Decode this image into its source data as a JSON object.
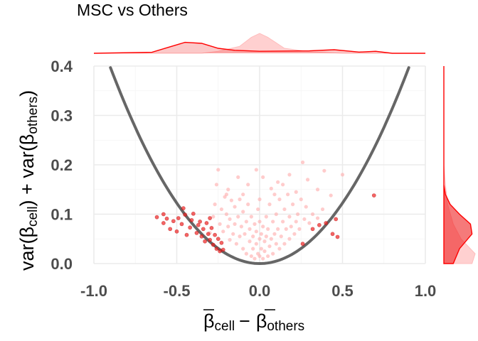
{
  "chart_data": {
    "type": "scatter",
    "title": "MSC vs Others",
    "xlabel": {
      "part1": "β",
      "part1_sub": "cell",
      "operator": "−",
      "part2": "β",
      "part2_sub": "others"
    },
    "ylabel": {
      "prefix": "var(β",
      "sub1": "cell",
      "middle": ") + var(β",
      "sub2": "others",
      "suffix": ")"
    },
    "xlim": [
      -1.0,
      1.0
    ],
    "ylim": [
      0.0,
      0.4
    ],
    "x_ticks": [
      "-1.0",
      "-0.5",
      "0.0",
      "0.5",
      "1.0"
    ],
    "y_ticks": [
      "0.0",
      "0.1",
      "0.2",
      "0.3",
      "0.4"
    ],
    "grid": true,
    "curve": {
      "type": "parabola",
      "coefficient": 0.49,
      "x_range": [
        -0.9,
        0.9
      ],
      "color": "#666666"
    },
    "colors": {
      "significant": "#ee2222",
      "non_significant": "#ffaaaa",
      "density_line": "#ff0000"
    },
    "series": [
      {
        "name": "",
        "role": "significant",
        "points": [
          [
            -0.62,
            0.094
          ],
          [
            -0.58,
            0.082
          ],
          [
            -0.56,
            0.091
          ],
          [
            -0.54,
            0.07
          ],
          [
            -0.52,
            0.086
          ],
          [
            -0.5,
            0.065
          ],
          [
            -0.49,
            0.092
          ],
          [
            -0.47,
            0.08
          ],
          [
            -0.45,
            0.099
          ],
          [
            -0.44,
            0.058
          ],
          [
            -0.42,
            0.073
          ],
          [
            -0.41,
            0.088
          ],
          [
            -0.4,
            0.101
          ],
          [
            -0.38,
            0.062
          ],
          [
            -0.37,
            0.078
          ],
          [
            -0.36,
            0.085
          ],
          [
            -0.35,
            0.055
          ],
          [
            -0.34,
            0.07
          ],
          [
            -0.33,
            0.045
          ],
          [
            -0.32,
            0.082
          ],
          [
            -0.31,
            0.06
          ],
          [
            -0.3,
            0.048
          ],
          [
            -0.29,
            0.072
          ],
          [
            -0.28,
            0.038
          ],
          [
            -0.27,
            0.058
          ],
          [
            -0.26,
            0.03
          ],
          [
            -0.25,
            0.05
          ],
          [
            -0.24,
            0.025
          ],
          [
            -0.23,
            0.042
          ],
          [
            -0.22,
            0.028
          ],
          [
            -0.58,
            0.1
          ],
          [
            -0.46,
            0.112
          ],
          [
            -0.3,
            0.092
          ],
          [
            0.26,
            0.04
          ],
          [
            0.32,
            0.07
          ],
          [
            0.36,
            0.078
          ],
          [
            0.4,
            0.082
          ],
          [
            0.44,
            0.06
          ],
          [
            0.46,
            0.09
          ],
          [
            0.47,
            0.054
          ],
          [
            0.69,
            0.138
          ]
        ]
      },
      {
        "name": "",
        "role": "non_significant",
        "points": [
          [
            -0.3,
            0.062
          ],
          [
            -0.28,
            0.095
          ],
          [
            -0.27,
            0.12
          ],
          [
            -0.26,
            0.16
          ],
          [
            -0.25,
            0.19
          ],
          [
            -0.24,
            0.08
          ],
          [
            -0.23,
            0.11
          ],
          [
            -0.22,
            0.065
          ],
          [
            -0.21,
            0.135
          ],
          [
            -0.2,
            0.1
          ],
          [
            -0.19,
            0.075
          ],
          [
            -0.18,
            0.048
          ],
          [
            -0.18,
            0.09
          ],
          [
            -0.17,
            0.128
          ],
          [
            -0.16,
            0.06
          ],
          [
            -0.15,
            0.115
          ],
          [
            -0.15,
            0.08
          ],
          [
            -0.14,
            0.04
          ],
          [
            -0.13,
            0.095
          ],
          [
            -0.12,
            0.055
          ],
          [
            -0.12,
            0.13
          ],
          [
            -0.11,
            0.075
          ],
          [
            -0.1,
            0.03
          ],
          [
            -0.1,
            0.105
          ],
          [
            -0.09,
            0.06
          ],
          [
            -0.08,
            0.085
          ],
          [
            -0.08,
            0.02
          ],
          [
            -0.07,
            0.12
          ],
          [
            -0.06,
            0.045
          ],
          [
            -0.06,
            0.07
          ],
          [
            -0.05,
            0.015
          ],
          [
            -0.05,
            0.095
          ],
          [
            -0.04,
            0.055
          ],
          [
            -0.04,
            0.03
          ],
          [
            -0.03,
            0.08
          ],
          [
            -0.03,
            0.01
          ],
          [
            -0.02,
            0.04
          ],
          [
            -0.02,
            0.065
          ],
          [
            -0.01,
            0.02
          ],
          [
            -0.01,
            0.11
          ],
          [
            0.0,
            0.05
          ],
          [
            0.0,
            0.015
          ],
          [
            0.0,
            0.085
          ],
          [
            0.01,
            0.03
          ],
          [
            0.01,
            0.06
          ],
          [
            0.02,
            0.01
          ],
          [
            0.02,
            0.075
          ],
          [
            0.03,
            0.045
          ],
          [
            0.03,
            0.025
          ],
          [
            0.04,
            0.095
          ],
          [
            0.04,
            0.055
          ],
          [
            0.05,
            0.015
          ],
          [
            0.05,
            0.07
          ],
          [
            0.06,
            0.035
          ],
          [
            0.06,
            0.12
          ],
          [
            0.07,
            0.05
          ],
          [
            0.08,
            0.085
          ],
          [
            0.08,
            0.02
          ],
          [
            0.09,
            0.06
          ],
          [
            0.1,
            0.04
          ],
          [
            0.1,
            0.1
          ],
          [
            0.11,
            0.07
          ],
          [
            0.12,
            0.03
          ],
          [
            0.12,
            0.13
          ],
          [
            0.13,
            0.055
          ],
          [
            0.14,
            0.085
          ],
          [
            0.15,
            0.04
          ],
          [
            0.15,
            0.11
          ],
          [
            0.16,
            0.07
          ],
          [
            0.17,
            0.14
          ],
          [
            0.18,
            0.05
          ],
          [
            0.18,
            0.095
          ],
          [
            0.19,
            0.075
          ],
          [
            0.2,
            0.12
          ],
          [
            0.21,
            0.06
          ],
          [
            0.22,
            0.085
          ],
          [
            0.23,
            0.1
          ],
          [
            0.24,
            0.07
          ],
          [
            0.25,
            0.13
          ],
          [
            0.27,
            0.09
          ],
          [
            0.28,
            0.115
          ],
          [
            0.3,
            0.082
          ],
          [
            0.32,
            0.1
          ],
          [
            0.35,
            0.092
          ],
          [
            0.38,
            0.11
          ],
          [
            -0.13,
            0.175
          ],
          [
            -0.07,
            0.16
          ],
          [
            0.02,
            0.175
          ],
          [
            0.07,
            0.152
          ],
          [
            0.11,
            0.165
          ],
          [
            0.26,
            0.205
          ],
          [
            0.29,
            0.17
          ],
          [
            0.39,
            0.188
          ],
          [
            0.43,
            0.138
          ],
          [
            0.5,
            0.18
          ],
          [
            -0.02,
            0.19
          ],
          [
            0.18,
            0.18
          ],
          [
            0.35,
            0.15
          ],
          [
            -0.19,
            0.15
          ],
          [
            0.14,
            0.16
          ],
          [
            -0.2,
            0.14
          ],
          [
            0.0,
            0.13
          ],
          [
            0.22,
            0.145
          ],
          [
            -0.1,
            0.14
          ],
          [
            0.09,
            0.14
          ]
        ]
      }
    ],
    "marginal_density": {
      "top": {
        "significant": [
          [
            -0.65,
            0.05
          ],
          [
            -0.55,
            0.3
          ],
          [
            -0.45,
            0.55
          ],
          [
            -0.35,
            0.5
          ],
          [
            -0.25,
            0.25
          ],
          [
            -0.15,
            0.15
          ],
          [
            0.0,
            0.1
          ],
          [
            0.3,
            0.12
          ],
          [
            0.45,
            0.18
          ],
          [
            0.6,
            0.06
          ],
          [
            0.7,
            0.1
          ],
          [
            0.8,
            0.0
          ]
        ],
        "non_significant": [
          [
            -0.35,
            0.0
          ],
          [
            -0.25,
            0.1
          ],
          [
            -0.12,
            0.35
          ],
          [
            -0.05,
            0.8
          ],
          [
            0.0,
            1.0
          ],
          [
            0.05,
            0.8
          ],
          [
            0.15,
            0.25
          ],
          [
            0.3,
            0.08
          ],
          [
            0.5,
            0.0
          ]
        ]
      },
      "right": {
        "significant": [
          [
            0.0,
            0.3
          ],
          [
            0.03,
            0.5
          ],
          [
            0.06,
            0.9
          ],
          [
            0.08,
            0.85
          ],
          [
            0.1,
            0.5
          ],
          [
            0.12,
            0.2
          ],
          [
            0.14,
            0.05
          ],
          [
            0.16,
            0.0
          ]
        ],
        "non_significant": [
          [
            0.0,
            0.9
          ],
          [
            0.02,
            1.0
          ],
          [
            0.05,
            0.55
          ],
          [
            0.08,
            0.3
          ],
          [
            0.12,
            0.12
          ],
          [
            0.16,
            0.05
          ],
          [
            0.2,
            0.0
          ]
        ]
      }
    }
  }
}
